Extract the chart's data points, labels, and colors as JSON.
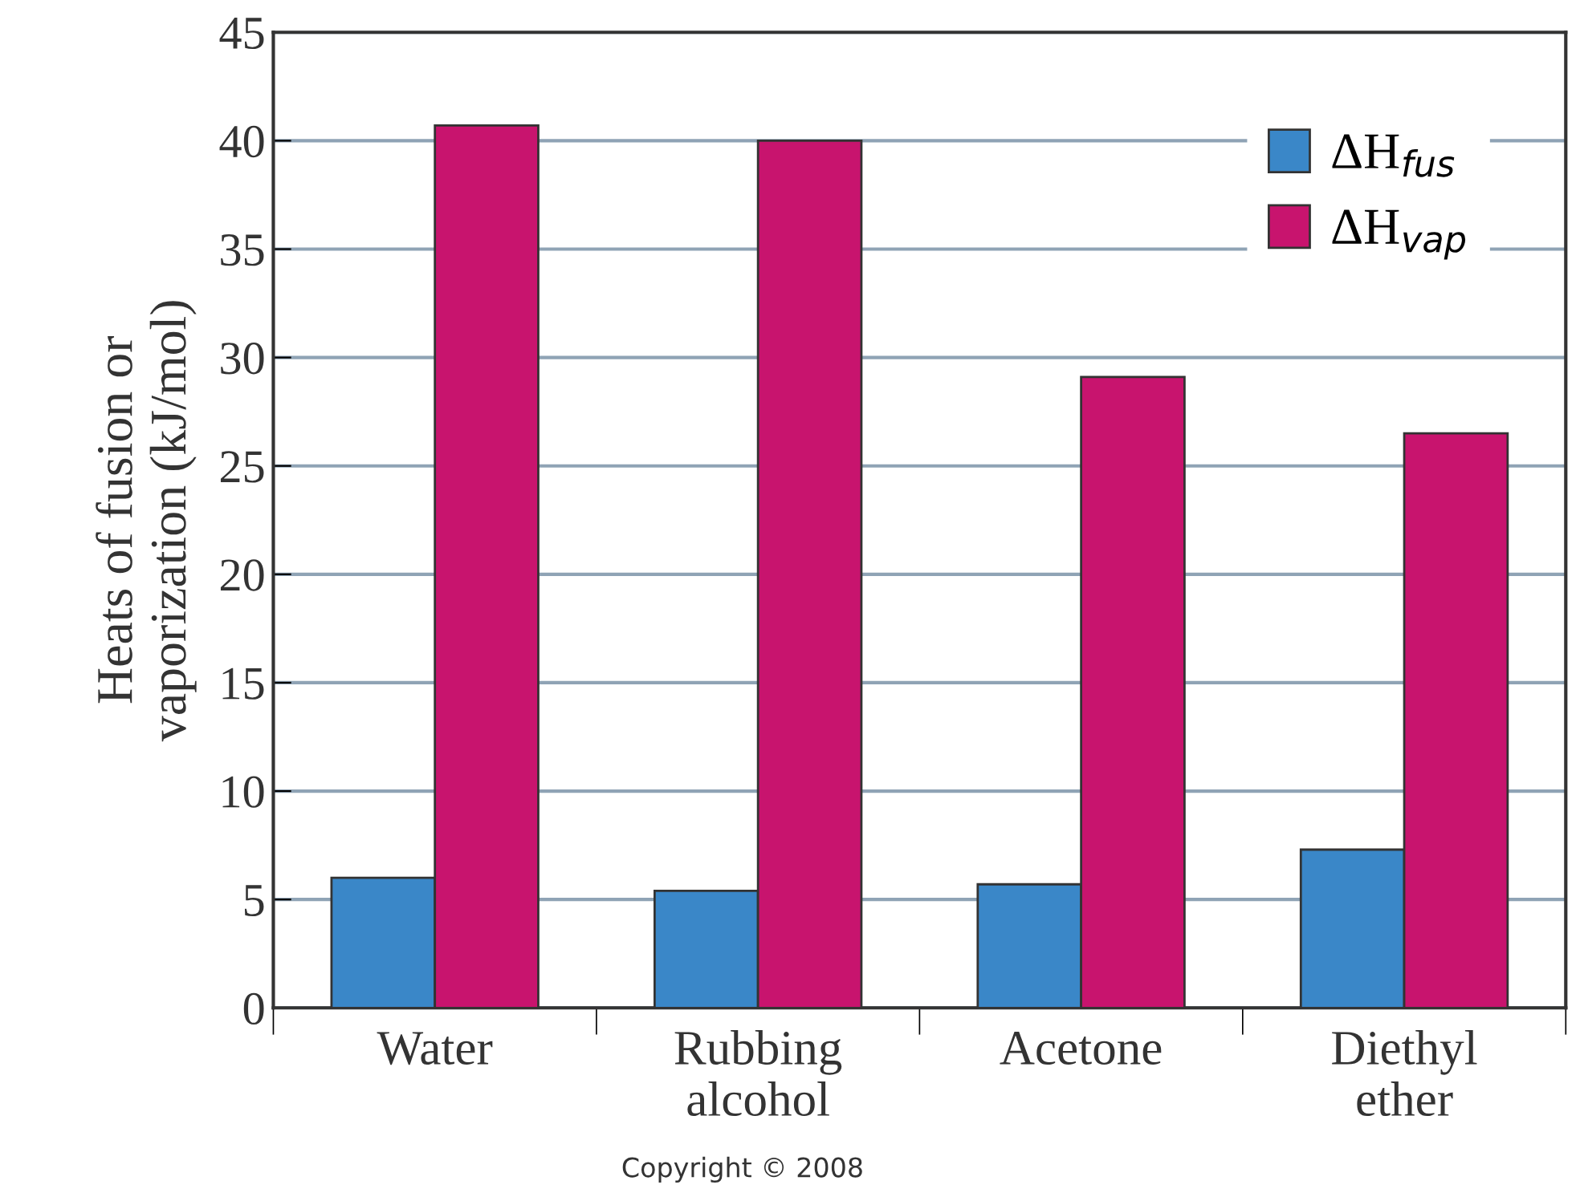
{
  "chart_data": {
    "type": "bar",
    "ylabel": "Heats of fusion or\nvaporization (kJ/mol)",
    "categories": [
      "Water",
      "Rubbing\nalcohol",
      "Acetone",
      "Diethyl\nether"
    ],
    "series": [
      {
        "name": "ΔH$_{fus}$",
        "color": "#3a87c8",
        "values": [
          6.0,
          5.4,
          5.7,
          7.3
        ]
      },
      {
        "name": "ΔH$_{vap}$",
        "color": "#c8146e",
        "values": [
          40.7,
          40.0,
          29.1,
          26.5
        ]
      }
    ],
    "ylim": [
      0,
      45
    ],
    "yticks": [
      0,
      5,
      10,
      15,
      20,
      25,
      30,
      35,
      40,
      45
    ],
    "grid": "y",
    "legend": "top right",
    "annotations": [
      "Copyright © 2008"
    ]
  }
}
